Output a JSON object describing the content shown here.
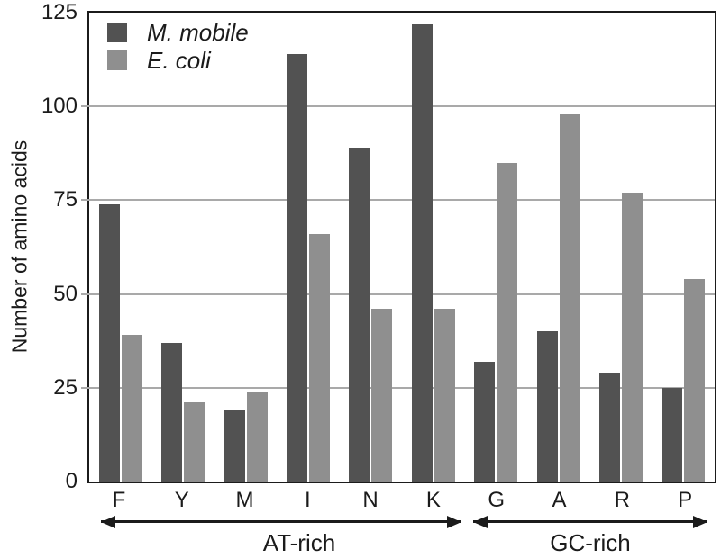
{
  "chart_data": {
    "type": "bar",
    "title": "",
    "xlabel": "",
    "ylabel": "Number of amino acids",
    "ylim": [
      0,
      125
    ],
    "yticks": [
      0,
      25,
      50,
      75,
      100,
      125
    ],
    "grid": true,
    "legend_position": "top-left",
    "categories": [
      "F",
      "Y",
      "M",
      "I",
      "N",
      "K",
      "G",
      "A",
      "R",
      "P"
    ],
    "series": [
      {
        "name": "M. mobile",
        "key": "m-mobile",
        "color": "#525252",
        "values": [
          74,
          37,
          19,
          114,
          89,
          122,
          32,
          40,
          29,
          25
        ]
      },
      {
        "name": "E. coli",
        "key": "e-coli",
        "color": "#8f8f8f",
        "values": [
          39,
          21,
          24,
          66,
          46,
          46,
          85,
          98,
          77,
          54
        ]
      }
    ],
    "group_annotations": [
      {
        "label": "AT-rich",
        "from": "F",
        "to": "K"
      },
      {
        "label": "GC-rich",
        "from": "G",
        "to": "P"
      }
    ]
  },
  "colors": {
    "frame": "#1b1b1b",
    "gridline": "#a9a9a9",
    "background": "#ffffff"
  }
}
